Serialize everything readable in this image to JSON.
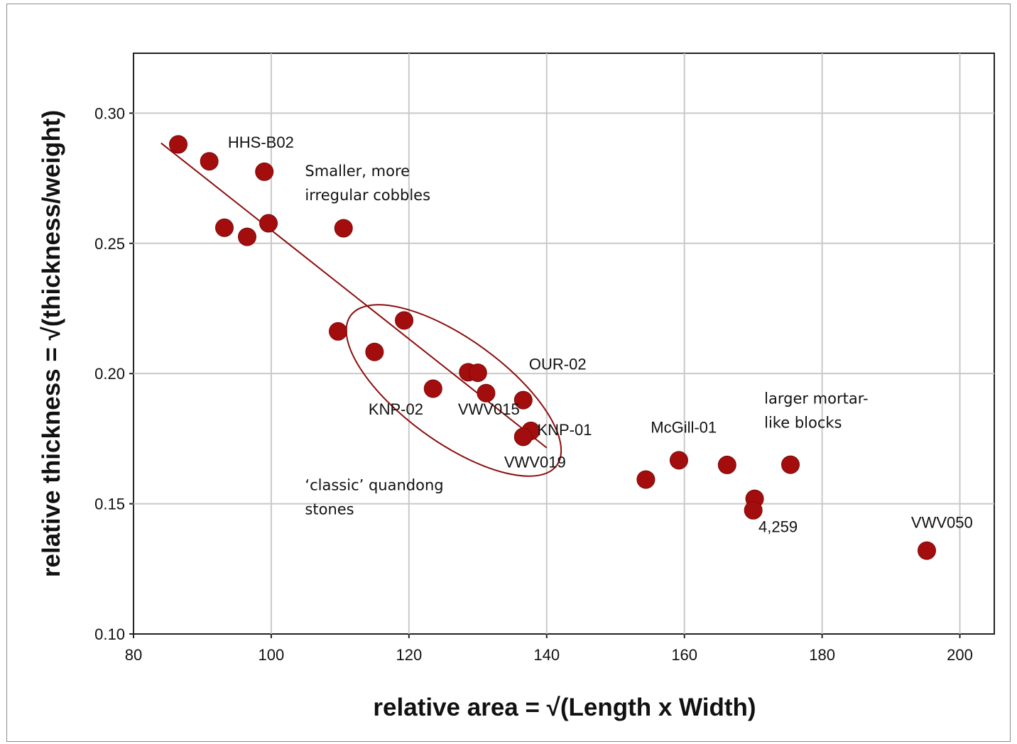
{
  "chart_data": {
    "type": "scatter",
    "title": "",
    "xlabel": "relative area = √(Length x Width)",
    "ylabel": "relative thickness = √(thickness/weight)",
    "xlim": [
      80,
      205
    ],
    "ylim": [
      0.1,
      0.323
    ],
    "xticks": [
      "80",
      "100",
      "120",
      "140",
      "160",
      "180",
      "200"
    ],
    "yticks": [
      "0.10",
      "0.15",
      "0.20",
      "0.25",
      "0.30"
    ],
    "grid": true,
    "marker_color": "#a30d0d",
    "line_color": "#8b0d0d",
    "points": [
      {
        "x": 86.5,
        "y": 0.288
      },
      {
        "x": 91,
        "y": 0.2815
      },
      {
        "x": 93.2,
        "y": 0.256
      },
      {
        "x": 96.5,
        "y": 0.2525
      },
      {
        "x": 99,
        "y": 0.2775
      },
      {
        "x": 99.6,
        "y": 0.2577
      },
      {
        "x": 110.5,
        "y": 0.2558
      },
      {
        "x": 109.7,
        "y": 0.2162
      },
      {
        "x": 115,
        "y": 0.2083
      },
      {
        "x": 119.3,
        "y": 0.2204
      },
      {
        "x": 123.5,
        "y": 0.1942
      },
      {
        "x": 128.6,
        "y": 0.2005
      },
      {
        "x": 130,
        "y": 0.2003
      },
      {
        "x": 131.2,
        "y": 0.1925
      },
      {
        "x": 136.6,
        "y": 0.1898
      },
      {
        "x": 137.7,
        "y": 0.178
      },
      {
        "x": 136.6,
        "y": 0.1757
      },
      {
        "x": 154.4,
        "y": 0.1593
      },
      {
        "x": 159.2,
        "y": 0.1667
      },
      {
        "x": 166.2,
        "y": 0.1649
      },
      {
        "x": 170.2,
        "y": 0.1519
      },
      {
        "x": 170,
        "y": 0.1475
      },
      {
        "x": 175.4,
        "y": 0.165
      },
      {
        "x": 195.2,
        "y": 0.132
      }
    ],
    "trendline": {
      "x": [
        84,
        140
      ],
      "y": [
        0.2885,
        0.1715
      ]
    },
    "ellipse": {
      "cx": 126.5,
      "cy": 0.1935,
      "rx_data": 18.5,
      "ry": 0.0198,
      "angle_deg": 36
    },
    "labels": [
      {
        "text": "HHS-B02",
        "x": 98.5,
        "y": 0.2867
      },
      {
        "text": "OUR-02",
        "x": 141.6,
        "y": 0.2016
      },
      {
        "text": "KNP-02",
        "x": 118.1,
        "y": 0.1842
      },
      {
        "text": "VWV015",
        "x": 131.6,
        "y": 0.1842
      },
      {
        "text": "KNP-01",
        "x": 142.6,
        "y": 0.1764
      },
      {
        "text": "VWV019",
        "x": 138.3,
        "y": 0.1639
      },
      {
        "text": "McGill-01",
        "x": 159.9,
        "y": 0.1773
      },
      {
        "text": "VWV050",
        "x": 197.4,
        "y": 0.1408
      },
      {
        "text": "4,259",
        "x": 173.6,
        "y": 0.1391
      }
    ],
    "annotations": [
      {
        "lines": [
          "Smaller, more",
          "irregular cobbles"
        ],
        "x": 104.9,
        "y": 0.2758
      },
      {
        "lines": [
          "larger mortar-",
          "like blocks"
        ],
        "x": 171.6,
        "y": 0.1885
      },
      {
        "lines": [
          "‘classic’ quandong",
          "stones"
        ],
        "x": 104.9,
        "y": 0.1552
      }
    ]
  }
}
